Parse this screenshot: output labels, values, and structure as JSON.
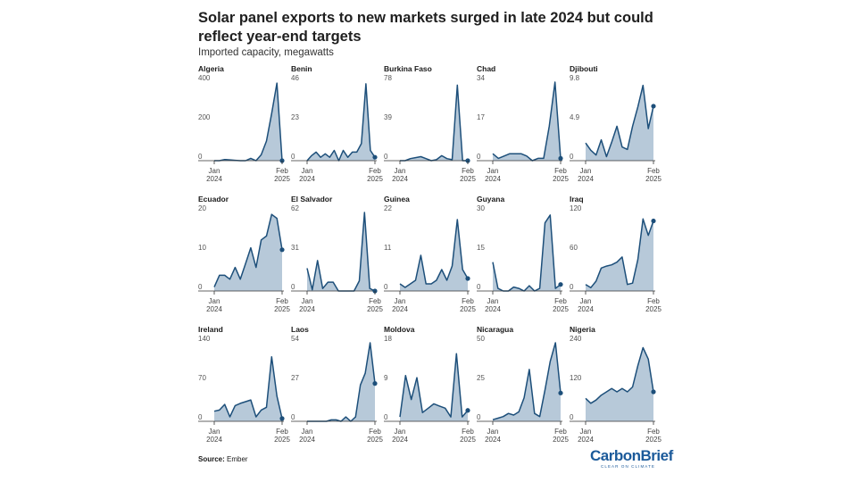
{
  "title": "Solar panel exports to new markets surged in late 2024 but could reflect year-end targets",
  "subtitle": "Imported capacity, megawatts",
  "source_label": "Source:",
  "source_value": "Ember",
  "logo": {
    "main": "CarbonBrief",
    "tagline": "CLEAR ON CLIMATE"
  },
  "colors": {
    "line": "#1d4f7a",
    "fill": "#b7c9d9",
    "axis": "#333333"
  },
  "chart_data": [
    {
      "type": "area",
      "title": "Algeria",
      "x_labels": [
        "Jan\n2024",
        "Feb\n2025"
      ],
      "y_ticks": [
        400,
        200,
        0
      ],
      "ylim": [
        0,
        400
      ],
      "values": [
        0,
        0,
        6,
        4,
        2,
        0,
        0,
        12,
        0,
        30,
        100,
        240,
        395,
        0
      ]
    },
    {
      "type": "area",
      "title": "Benin",
      "x_labels": [
        "Jan\n2024",
        "Feb\n2025"
      ],
      "y_ticks": [
        46,
        23,
        0
      ],
      "ylim": [
        0,
        46
      ],
      "values": [
        0,
        3,
        5,
        2,
        4,
        2,
        6,
        0,
        6,
        2,
        5,
        5,
        10,
        45,
        6,
        2
      ]
    },
    {
      "type": "area",
      "title": "Burkina Faso",
      "x_labels": [
        "Jan\n2024",
        "Feb\n2025"
      ],
      "y_ticks": [
        78,
        39,
        0
      ],
      "ylim": [
        0,
        78
      ],
      "values": [
        0,
        0,
        2,
        3,
        4,
        2,
        0,
        1,
        5,
        2,
        1,
        75,
        0,
        0
      ]
    },
    {
      "type": "area",
      "title": "Chad",
      "x_labels": [
        "Jan\n2024",
        "Feb\n2025"
      ],
      "y_ticks": [
        34,
        17,
        0
      ],
      "ylim": [
        0,
        34
      ],
      "values": [
        3,
        1,
        2,
        3,
        3,
        3,
        2,
        0,
        1,
        1,
        15,
        34,
        1
      ]
    },
    {
      "type": "area",
      "title": "Djibouti",
      "x_labels": [
        "Jan\n2024",
        "Feb\n2025"
      ],
      "y_ticks": [
        9.8,
        4.9,
        0
      ],
      "ylim": [
        0,
        9.8
      ],
      "values": [
        2.2,
        1.3,
        0.7,
        2.6,
        0.5,
        2.3,
        4.3,
        1.7,
        1.4,
        4.3,
        6.7,
        9.4,
        4.0,
        6.8
      ]
    },
    {
      "type": "area",
      "title": "Ecuador",
      "x_labels": [
        "Jan\n2024",
        "Feb\n2025"
      ],
      "y_ticks": [
        20,
        10,
        0
      ],
      "ylim": [
        0,
        20
      ],
      "values": [
        1,
        4,
        4,
        3,
        6,
        3,
        7,
        11,
        6,
        13,
        14,
        19.5,
        18.5,
        10.5
      ]
    },
    {
      "type": "area",
      "title": "El Salvador",
      "x_labels": [
        "Jan\n2024",
        "Feb\n2025"
      ],
      "y_ticks": [
        62,
        31,
        0
      ],
      "ylim": [
        0,
        62
      ],
      "values": [
        18,
        1,
        24,
        2,
        7,
        7,
        0,
        0,
        0,
        0,
        8,
        62,
        2,
        0
      ]
    },
    {
      "type": "area",
      "title": "Guinea",
      "x_labels": [
        "Jan\n2024",
        "Feb\n2025"
      ],
      "y_ticks": [
        22,
        11,
        0
      ],
      "ylim": [
        0,
        22
      ],
      "values": [
        2,
        1,
        2,
        3,
        10,
        2,
        2,
        3,
        6,
        3,
        7,
        20,
        6,
        3.5
      ]
    },
    {
      "type": "area",
      "title": "Guyana",
      "x_labels": [
        "Jan\n2024",
        "Feb\n2025"
      ],
      "y_ticks": [
        30,
        15,
        0
      ],
      "ylim": [
        0,
        30
      ],
      "values": [
        11,
        1,
        0,
        0,
        1.5,
        1,
        0,
        2,
        0,
        1,
        26,
        29,
        1,
        2.5
      ]
    },
    {
      "type": "area",
      "title": "Iraq",
      "x_labels": [
        "Jan\n2024",
        "Feb\n2025"
      ],
      "y_ticks": [
        120,
        60,
        0
      ],
      "ylim": [
        0,
        120
      ],
      "values": [
        10,
        5,
        15,
        35,
        38,
        40,
        44,
        52,
        10,
        12,
        48,
        110,
        85,
        107
      ]
    },
    {
      "type": "area",
      "title": "Ireland",
      "x_labels": [
        "Jan\n2024",
        "Feb\n2025"
      ],
      "y_ticks": [
        140,
        70,
        0
      ],
      "ylim": [
        0,
        140
      ],
      "values": [
        18,
        20,
        30,
        8,
        28,
        32,
        35,
        38,
        8,
        20,
        25,
        115,
        45,
        5
      ]
    },
    {
      "type": "area",
      "title": "Laos",
      "x_labels": [
        "Jan\n2024",
        "Feb\n2025"
      ],
      "y_ticks": [
        54,
        27,
        0
      ],
      "ylim": [
        0,
        54
      ],
      "values": [
        0,
        0,
        0,
        0,
        0,
        1,
        1,
        0,
        3,
        0,
        3,
        25,
        33,
        54,
        26
      ]
    },
    {
      "type": "area",
      "title": "Moldova",
      "x_labels": [
        "Jan\n2024",
        "Feb\n2025"
      ],
      "y_ticks": [
        18,
        9,
        0
      ],
      "ylim": [
        0,
        18
      ],
      "values": [
        1,
        10.5,
        5,
        10,
        2,
        3,
        4,
        3.5,
        3,
        1,
        15.5,
        1,
        2.5
      ]
    },
    {
      "type": "area",
      "title": "Nicaragua",
      "x_labels": [
        "Jan\n2024",
        "Feb\n2025"
      ],
      "y_ticks": [
        50,
        25,
        0
      ],
      "ylim": [
        0,
        50
      ],
      "values": [
        1,
        2,
        3,
        5,
        4,
        6,
        15,
        33,
        5,
        3,
        20,
        38,
        50,
        18
      ]
    },
    {
      "type": "area",
      "title": "Nigeria",
      "x_labels": [
        "Jan\n2024",
        "Feb\n2025"
      ],
      "y_ticks": [
        240,
        120,
        0
      ],
      "ylim": [
        0,
        240
      ],
      "values": [
        70,
        55,
        65,
        80,
        90,
        100,
        90,
        100,
        90,
        105,
        170,
        225,
        190,
        90
      ]
    }
  ]
}
